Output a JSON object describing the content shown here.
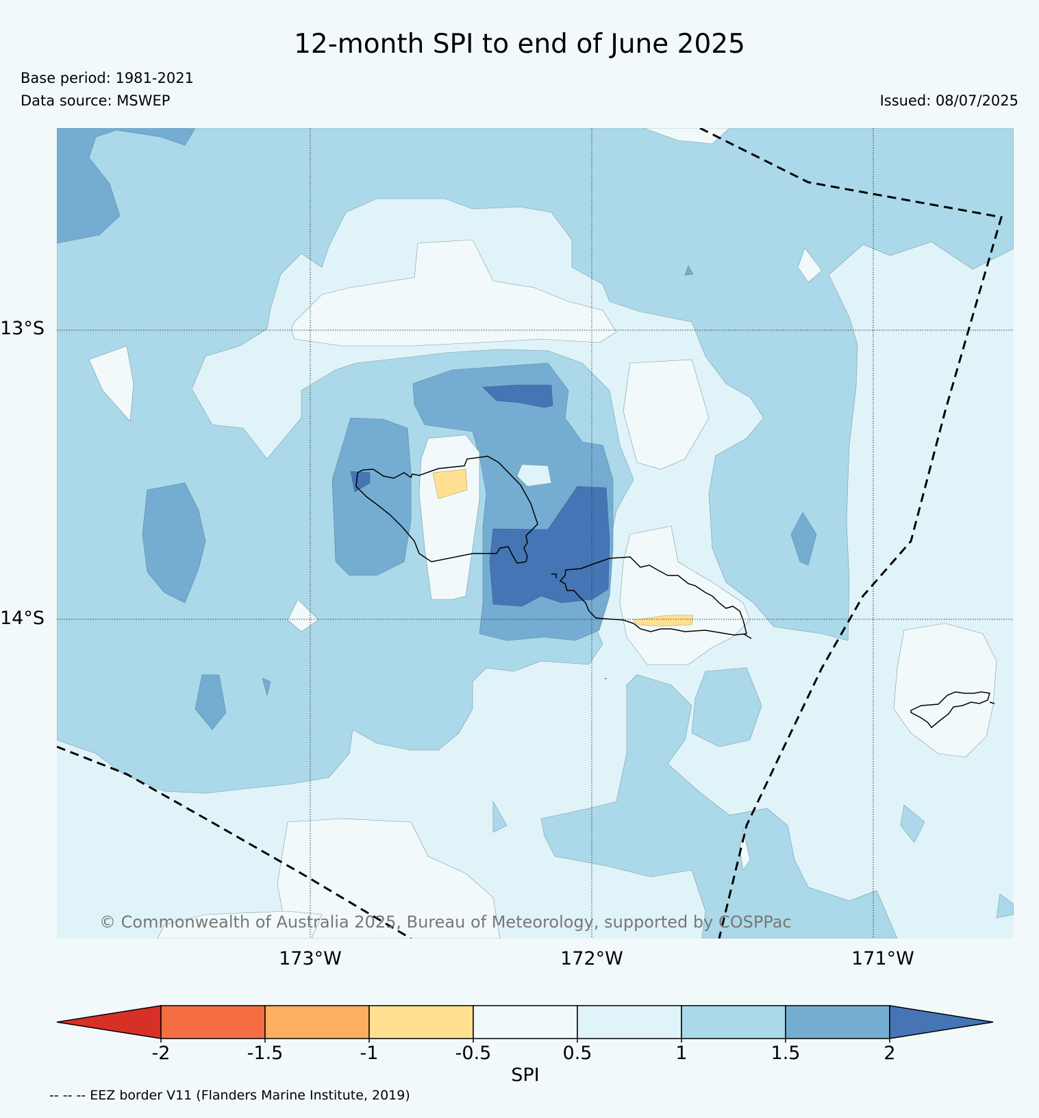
{
  "title": "12-month SPI to end of June 2025",
  "base_period": "Base period: 1981-2021",
  "data_source": "Data source: MSWEP",
  "issued": "Issued: 08/07/2025",
  "lat_labels": [
    "13°S",
    "14°S"
  ],
  "lon_labels": [
    "173°W",
    "172°W",
    "171°W"
  ],
  "copyright": "© Commonwealth of Australia 2025, Bureau of Meteorology, supported by COSPPac",
  "colorbar": {
    "label": "SPI",
    "ticks": [
      "-2",
      "-1.5",
      "-1",
      "-0.5",
      "0.5",
      "1",
      "1.5",
      "2"
    ],
    "colors": [
      "#d73027",
      "#f46d43",
      "#fdae61",
      "#fee090",
      "#f2f9fb",
      "#e0f3f8",
      "#abd9e9",
      "#74add1",
      "#4575b4"
    ]
  },
  "eez_note": "-- -- -- EEZ border V11 (Flanders Marine Institute, 2019)"
}
